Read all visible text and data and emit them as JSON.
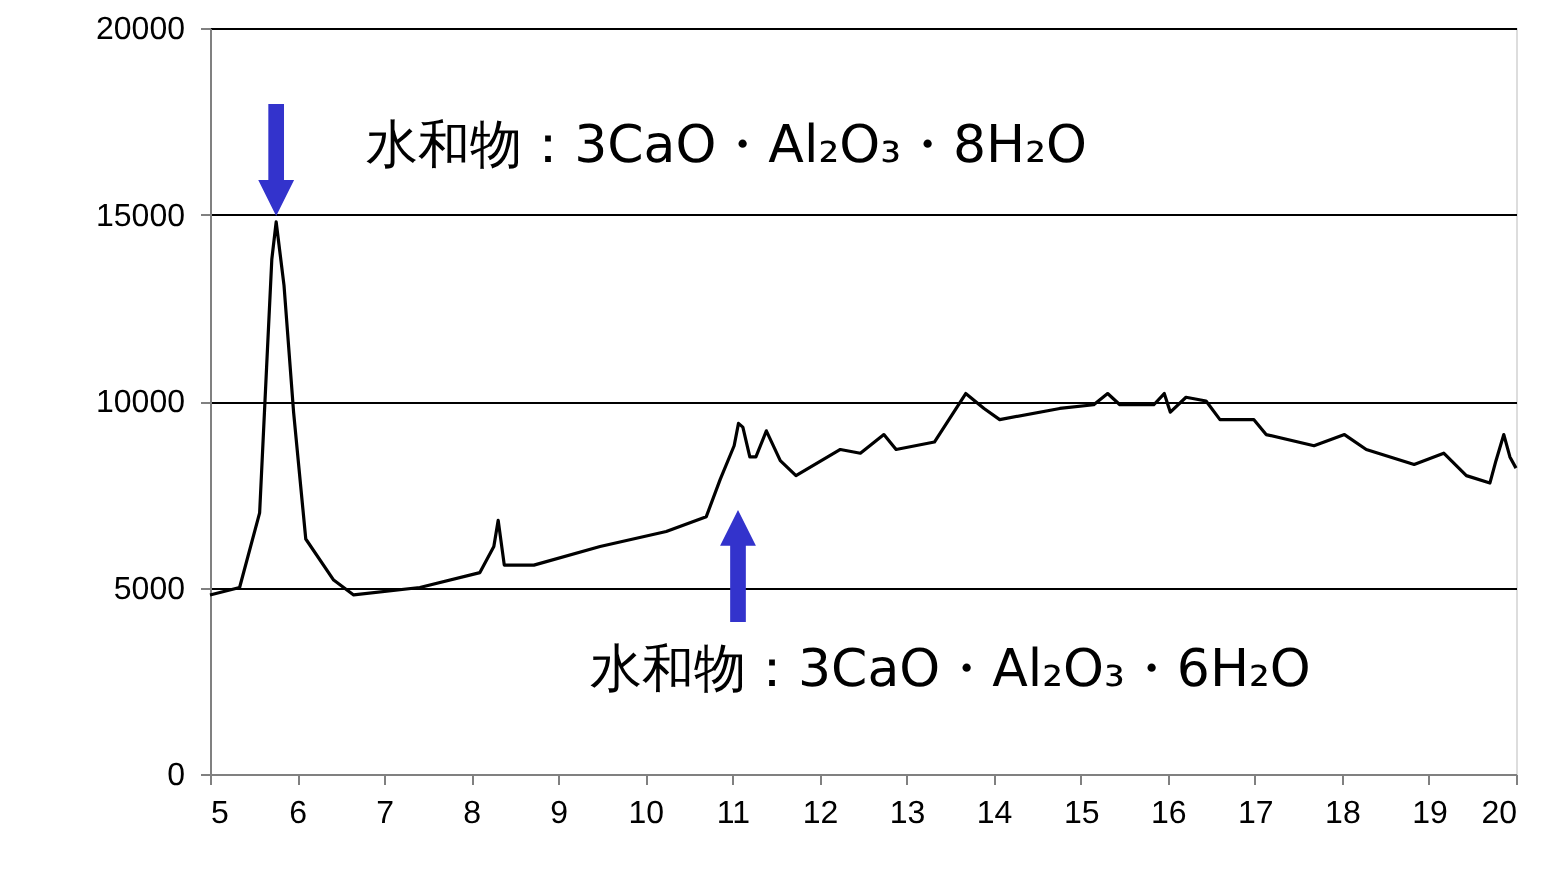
{
  "chart_data": {
    "type": "line",
    "x": [
      5.0,
      5.34,
      5.57,
      5.65,
      5.71,
      5.76,
      5.85,
      5.96,
      6.1,
      6.42,
      6.65,
      7.41,
      8.1,
      8.26,
      8.31,
      8.38,
      8.72,
      9.48,
      10.24,
      10.7,
      10.86,
      11.02,
      11.07,
      11.12,
      11.2,
      11.27,
      11.39,
      11.55,
      11.73,
      12.24,
      12.47,
      12.74,
      12.88,
      13.32,
      13.68,
      13.89,
      14.07,
      14.76,
      15.15,
      15.31,
      15.45,
      15.84,
      15.96,
      16.03,
      16.21,
      16.44,
      16.6,
      16.99,
      17.13,
      17.68,
      18.03,
      18.28,
      18.83,
      19.17,
      19.43,
      19.7,
      19.77,
      19.86,
      19.93,
      20.0
    ],
    "series": [
      {
        "color": "#000000",
        "values": [
          4800,
          5000,
          7000,
          10900,
          13800,
          14800,
          13100,
          9700,
          6300,
          5200,
          4800,
          5000,
          5400,
          6100,
          6800,
          5600,
          5600,
          6100,
          6500,
          6900,
          7900,
          8800,
          9400,
          9300,
          8500,
          8500,
          9200,
          8400,
          8000,
          8700,
          8600,
          9100,
          8700,
          8900,
          10200,
          9800,
          9500,
          9800,
          9900,
          10200,
          9900,
          9900,
          10200,
          9700,
          10100,
          10000,
          9500,
          9500,
          9100,
          8800,
          9100,
          8700,
          8300,
          8600,
          8000,
          7800,
          8400,
          9100,
          8500,
          8200
        ]
      }
    ],
    "xlim": [
      5,
      20
    ],
    "xticks": [
      5,
      6,
      7,
      8,
      9,
      10,
      11,
      12,
      13,
      14,
      15,
      16,
      17,
      18,
      19,
      20
    ],
    "ylim": [
      0,
      20000
    ],
    "yticks": [
      0,
      5000,
      10000,
      15000,
      20000
    ],
    "grid": "y",
    "marker": "none",
    "line_style": "solid",
    "annotations": [
      {
        "text": "水和物：3CaO・Al₂O₃・8H₂O",
        "x": 5.76,
        "y": 14800
      },
      "水和物：3CaO・Al₂O₃・6H₂O"
    ]
  }
}
